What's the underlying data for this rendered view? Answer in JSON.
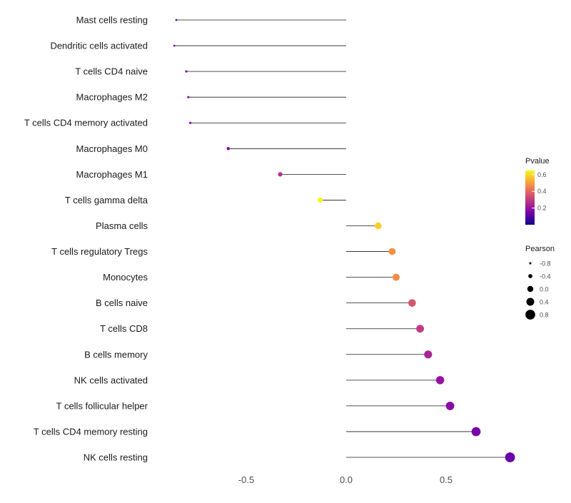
{
  "chart_data": {
    "type": "lollipop",
    "title": "",
    "xlabel": "",
    "ylabel": "",
    "x_ticks": [
      -0.5,
      0.0,
      0.5
    ],
    "x_tick_labels": [
      "-0.5",
      "0.0",
      "0.5"
    ],
    "xlim": [
      -0.96,
      1.0
    ],
    "rows": [
      {
        "label": "Mast cells resting",
        "pearson": -0.85,
        "pvalue": 0.04,
        "color": "#5c01a6"
      },
      {
        "label": "Dendritic cells activated",
        "pearson": -0.86,
        "pvalue": 0.05,
        "color": "#6600a7"
      },
      {
        "label": "T cells CD4 naive",
        "pearson": -0.8,
        "pvalue": 0.08,
        "color": "#7a02a8"
      },
      {
        "label": "Macrophages M2",
        "pearson": -0.79,
        "pvalue": 0.09,
        "color": "#8305a7"
      },
      {
        "label": "T cells CD4 memory activated",
        "pearson": -0.78,
        "pvalue": 0.1,
        "color": "#8a09a5"
      },
      {
        "label": "Macrophages M0",
        "pearson": -0.59,
        "pvalue": 0.09,
        "color": "#8405a7"
      },
      {
        "label": "Macrophages M1",
        "pearson": -0.33,
        "pvalue": 0.28,
        "color": "#b5308b"
      },
      {
        "label": "T cells gamma delta",
        "pearson": -0.13,
        "pvalue": 0.62,
        "color": "#f0f921"
      },
      {
        "label": "Plasma cells",
        "pearson": 0.16,
        "pvalue": 0.55,
        "color": "#fcce25"
      },
      {
        "label": "T cells regulatory  Tregs",
        "pearson": 0.23,
        "pvalue": 0.42,
        "color": "#f79044"
      },
      {
        "label": "Monocytes",
        "pearson": 0.25,
        "pvalue": 0.41,
        "color": "#f58c46"
      },
      {
        "label": "B cells naive",
        "pearson": 0.33,
        "pvalue": 0.3,
        "color": "#d5546e"
      },
      {
        "label": "T cells CD8",
        "pearson": 0.37,
        "pvalue": 0.27,
        "color": "#c13b82"
      },
      {
        "label": "B cells memory",
        "pearson": 0.41,
        "pvalue": 0.21,
        "color": "#aa2395"
      },
      {
        "label": "NK cells activated",
        "pearson": 0.47,
        "pvalue": 0.15,
        "color": "#9810a2"
      },
      {
        "label": "T cells follicular helper",
        "pearson": 0.52,
        "pvalue": 0.11,
        "color": "#8a09a5"
      },
      {
        "label": "T cells CD4 memory resting",
        "pearson": 0.65,
        "pvalue": 0.06,
        "color": "#7602a8"
      },
      {
        "label": "NK cells resting",
        "pearson": 0.82,
        "pvalue": 0.02,
        "color": "#6a00a8"
      }
    ],
    "legend": {
      "pvalue": {
        "title": "Pvalue",
        "ticks": [
          0.6,
          0.4,
          0.2
        ],
        "tick_labels": [
          "0.6",
          "0.4",
          "0.2"
        ],
        "range": [
          0,
          0.65
        ],
        "gradient_top_to_bottom": [
          "#f0f921",
          "#fca636",
          "#e16462",
          "#b12a90",
          "#6a00a8",
          "#0d0887"
        ]
      },
      "pearson": {
        "title": "Pearson",
        "sizes": [
          -0.8,
          -0.4,
          0.0,
          0.4,
          0.8
        ],
        "size_labels": [
          "-0.8",
          "-0.4",
          "0.0",
          "0.4",
          "0.8"
        ],
        "dot_color": "#000000"
      }
    },
    "stem_color": "#1a1a1a",
    "label_color": "#1a1a1a",
    "tick_color": "#4d4d4d",
    "legend_title_color": "#1a1a1a",
    "legend_text_color": "#4d4d4d",
    "background": "#ffffff"
  }
}
